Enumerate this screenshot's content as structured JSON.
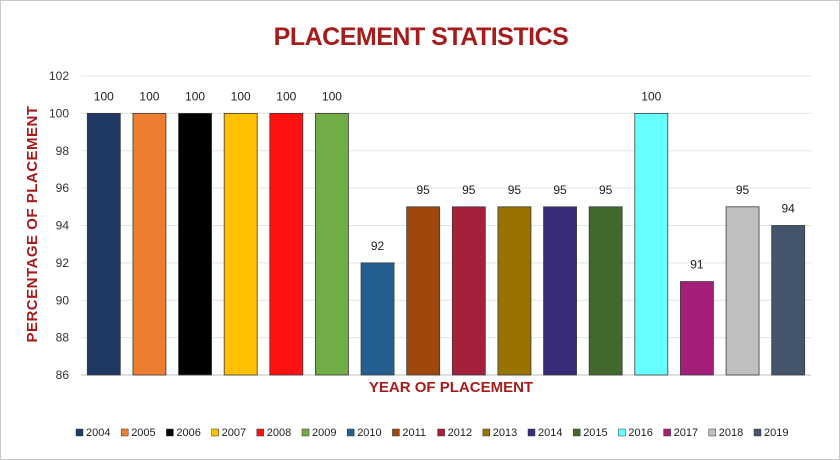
{
  "chart_data": {
    "type": "bar",
    "title": "PLACEMENT STATISTICS",
    "xlabel": "YEAR OF PLACEMENT",
    "ylabel": "PERCENTAGE OF PLACEMENT",
    "ylim": [
      86,
      102
    ],
    "yticks": [
      "86",
      "88",
      "90",
      "92",
      "94",
      "96",
      "98",
      "100",
      "102"
    ],
    "ytick_values": [
      86,
      88,
      90,
      92,
      94,
      96,
      98,
      100,
      102
    ],
    "categories": [
      "2004",
      "2005",
      "2006",
      "2007",
      "2008",
      "2009",
      "2010",
      "2011",
      "2012",
      "2013",
      "2014",
      "2015",
      "2016",
      "2017",
      "2018",
      "2019"
    ],
    "values": [
      100,
      100,
      100,
      100,
      100,
      100,
      92,
      95,
      95,
      95,
      95,
      95,
      100,
      91,
      95,
      94
    ],
    "data_labels": [
      "100",
      "100",
      "100",
      "100",
      "100",
      "100",
      "92",
      "95",
      "95",
      "95",
      "95",
      "95",
      "100",
      "91",
      "95",
      "94"
    ],
    "colors": [
      "#1f3864",
      "#ed7d31",
      "#000000",
      "#ffc000",
      "#ff1111",
      "#70ad47",
      "#255e91",
      "#9e480e",
      "#a5203a",
      "#997300",
      "#3a2a7a",
      "#43682b",
      "#66ffff",
      "#a51e7a",
      "#bfbfbf",
      "#44546a"
    ],
    "grid": true,
    "legend": "bottom"
  }
}
